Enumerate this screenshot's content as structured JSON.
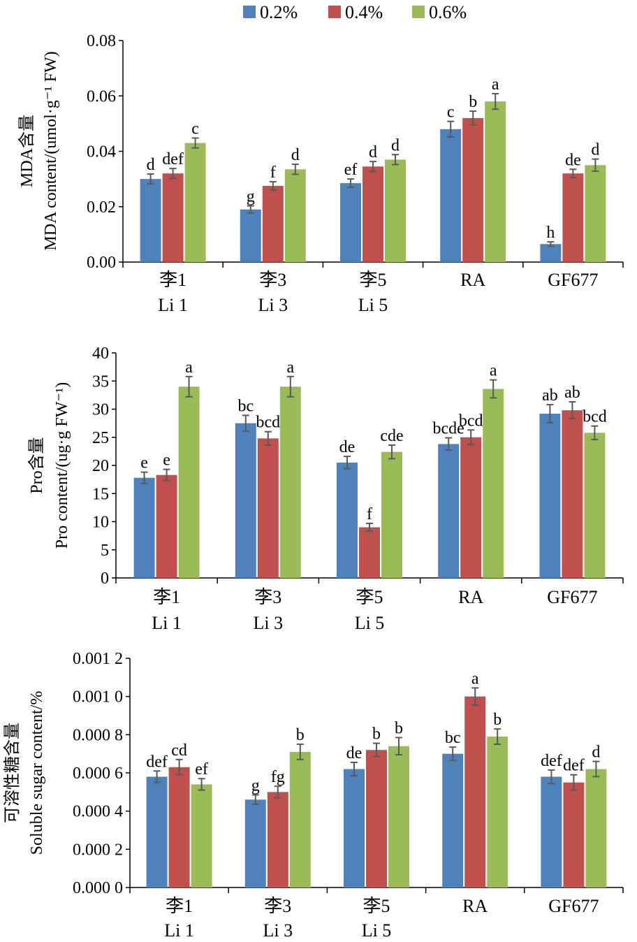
{
  "legend": {
    "items": [
      {
        "label": "0.2%",
        "color": "#4F81BD"
      },
      {
        "label": "0.4%",
        "color": "#C0504D"
      },
      {
        "label": "0.6%",
        "color": "#9BBB59"
      }
    ],
    "placement": "top-center"
  },
  "colors": {
    "error_bar": "#595959",
    "axis": "#000000"
  },
  "chart_data": [
    {
      "type": "bar",
      "ylabel_cn": "MDA含量",
      "ylabel_en": "MDA content/(umol·g⁻¹ FW)",
      "ylim": [
        0,
        0.08
      ],
      "ytick_labels": [
        "0.00",
        "0.02",
        "0.04",
        "0.06",
        "0.08"
      ],
      "categories_cn": [
        "李1",
        "李3",
        "李5",
        "RA",
        "GF677"
      ],
      "categories_en": [
        "Li 1",
        "Li 3",
        "Li 5",
        "",
        ""
      ],
      "series": [
        {
          "name": "0.2%",
          "values": [
            0.03,
            0.019,
            0.0285,
            0.048,
            0.0065
          ],
          "errors": [
            0.0018,
            0.0013,
            0.0015,
            0.0028,
            0.0008
          ],
          "letters": [
            "d",
            "g",
            "ef",
            "c",
            "h"
          ]
        },
        {
          "name": "0.4%",
          "values": [
            0.032,
            0.0275,
            0.0345,
            0.052,
            0.032
          ],
          "errors": [
            0.0018,
            0.0015,
            0.0018,
            0.0025,
            0.0015
          ],
          "letters": [
            "def",
            "f",
            "d",
            "b",
            "de"
          ]
        },
        {
          "name": "0.6%",
          "values": [
            0.043,
            0.0335,
            0.037,
            0.058,
            0.035
          ],
          "errors": [
            0.0018,
            0.0018,
            0.0018,
            0.0028,
            0.0022
          ],
          "letters": [
            "c",
            "d",
            "d",
            "a",
            "d"
          ]
        }
      ]
    },
    {
      "type": "bar",
      "ylabel_cn": "Pro含量",
      "ylabel_en": "Pro content/(ug·g FW⁻¹)",
      "ylim": [
        0,
        40
      ],
      "ytick_labels": [
        "0",
        "5",
        "10",
        "15",
        "20",
        "25",
        "30",
        "35",
        "40"
      ],
      "categories_cn": [
        "李1",
        "李3",
        "李5",
        "RA",
        "GF677"
      ],
      "categories_en": [
        "Li 1",
        "Li 3",
        "Li 5",
        "",
        ""
      ],
      "series": [
        {
          "name": "0.2%",
          "values": [
            17.8,
            27.5,
            20.5,
            23.8,
            29.2
          ],
          "errors": [
            1.0,
            1.4,
            1.1,
            1.1,
            1.6
          ],
          "letters": [
            "e",
            "bc",
            "de",
            "bcde",
            "ab"
          ]
        },
        {
          "name": "0.4%",
          "values": [
            18.3,
            24.8,
            9.0,
            25.0,
            29.8
          ],
          "errors": [
            1.0,
            1.2,
            0.7,
            1.3,
            1.5
          ],
          "letters": [
            "e",
            "bcd",
            "f",
            "bcd",
            "ab"
          ]
        },
        {
          "name": "0.6%",
          "values": [
            34.0,
            34.0,
            22.4,
            33.6,
            25.8
          ],
          "errors": [
            1.8,
            1.8,
            1.2,
            1.6,
            1.2
          ],
          "letters": [
            "a",
            "a",
            "cde",
            "a",
            "bcd"
          ]
        }
      ]
    },
    {
      "type": "bar",
      "ylabel_cn": "可溶性糖含量",
      "ylabel_en": "Soluble sugar content/%",
      "ylim": [
        0,
        0.0012
      ],
      "ytick_labels": [
        "0.000 0",
        "0.000 2",
        "0.000 4",
        "0.000 6",
        "0.000 8",
        "0.001 0",
        "0.001 2"
      ],
      "categories_cn": [
        "李1",
        "李3",
        "李5",
        "RA",
        "GF677"
      ],
      "categories_en": [
        "Li 1",
        "Li 3",
        "Li 5",
        "",
        ""
      ],
      "series": [
        {
          "name": "0.2%",
          "values": [
            0.00058,
            0.00046,
            0.00062,
            0.0007,
            0.00058
          ],
          "errors": [
            3e-05,
            2.5e-05,
            3.5e-05,
            3.5e-05,
            3.5e-05
          ],
          "letters": [
            "def",
            "g",
            "de",
            "bc",
            "def"
          ]
        },
        {
          "name": "0.4%",
          "values": [
            0.00063,
            0.0005,
            0.00072,
            0.001,
            0.00055
          ],
          "errors": [
            4e-05,
            3e-05,
            3.5e-05,
            4.5e-05,
            4e-05
          ],
          "letters": [
            "cd",
            "fg",
            "b",
            "a",
            "def"
          ]
        },
        {
          "name": "0.6%",
          "values": [
            0.00054,
            0.00071,
            0.00074,
            0.00079,
            0.00062
          ],
          "errors": [
            3e-05,
            4e-05,
            4.5e-05,
            4e-05,
            4e-05
          ],
          "letters": [
            "ef",
            "b",
            "b",
            "b",
            "d"
          ]
        }
      ]
    }
  ]
}
